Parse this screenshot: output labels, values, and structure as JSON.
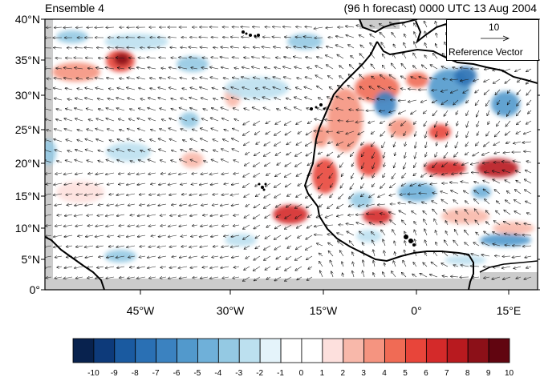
{
  "titles": {
    "left": "Ensemble 4",
    "right": "(96 h forecast) 0000 UTC 13 Aug 2004"
  },
  "reference_vector": {
    "magnitude": "10",
    "label": "Reference Vector"
  },
  "map": {
    "lat_labels": [
      "40°N",
      "35°N",
      "30°N",
      "25°N",
      "20°N",
      "15°N",
      "10°N",
      "5°N",
      "0°"
    ],
    "lon_labels": [
      "45°W",
      "30°W",
      "15°W",
      "0°",
      "15°E"
    ]
  },
  "colorbar": {
    "labels": [
      "-10",
      "-9",
      "-8",
      "-7",
      "-6",
      "-5",
      "-4",
      "-3",
      "-2",
      "-1",
      "0",
      "1",
      "2",
      "3",
      "4",
      "5",
      "6",
      "7",
      "8",
      "9",
      "10"
    ],
    "colors": [
      "#08224e",
      "#0d3a7a",
      "#1a5aa0",
      "#2a70b4",
      "#3b82c0",
      "#5299cc",
      "#6fb0d9",
      "#94c9e3",
      "#bce0ef",
      "#e4f3fa",
      "#ffffff",
      "#ffffff",
      "#fde0dd",
      "#f8b8aa",
      "#f59480",
      "#f06b55",
      "#e8453a",
      "#d42a2a",
      "#b81a1f",
      "#8c1018",
      "#610510"
    ]
  }
}
